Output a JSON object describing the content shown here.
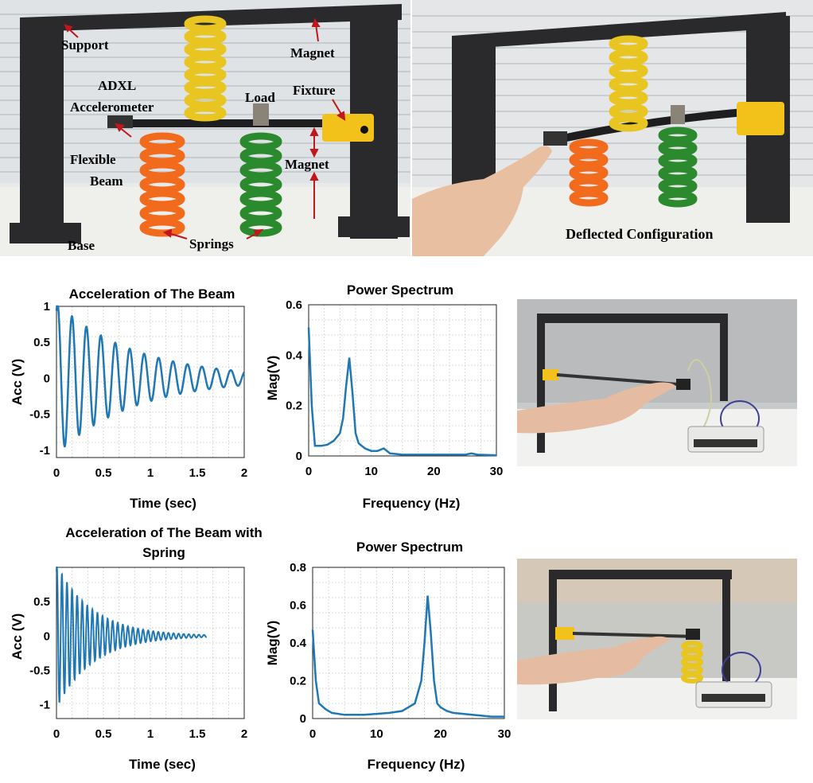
{
  "top_photos": {
    "left_labels": {
      "support": "Support",
      "magnet_top": "Magnet",
      "adxl": "ADXL",
      "accelerometer": "Accelerometer",
      "load": "Load",
      "fixture": "Fixture",
      "flexible": "Flexible",
      "beam": "Beam",
      "magnet_mid": "Magnet",
      "base": "Base",
      "springs": "Springs"
    },
    "right_label": "Deflected Configuration"
  },
  "chart_data": [
    {
      "type": "line",
      "title": "Acceleration of The Beam",
      "xlabel": "Time (sec)",
      "ylabel": "Acc (V)",
      "xlim": [
        0,
        2
      ],
      "ylim": [
        -1.1,
        1.0
      ],
      "xticks": [
        "0",
        "0.5",
        "1",
        "1.5",
        "2"
      ],
      "yticks": [
        "1",
        "0.5",
        "0",
        "-0.5",
        "-1"
      ],
      "grid": true,
      "series": [
        {
          "values_desc": "damped oscillation",
          "amplitude": 1.0,
          "frequency_hz": 6.5,
          "decay": 1.2
        }
      ]
    },
    {
      "type": "line",
      "title": "Power Spectrum",
      "xlabel": "Frequency (Hz)",
      "ylabel": "Mag(V)",
      "xlim": [
        0,
        30
      ],
      "ylim": [
        0,
        0.6
      ],
      "xticks": [
        "0",
        "10",
        "20",
        "30"
      ],
      "yticks": [
        "0.6",
        "0.4",
        "0.2",
        "0"
      ],
      "grid": true,
      "series": [
        {
          "x": [
            0,
            0.5,
            1,
            2,
            3,
            4,
            5,
            5.5,
            6,
            6.5,
            7,
            7.5,
            8,
            9,
            10,
            11,
            12,
            13,
            15,
            20,
            25,
            26,
            27,
            30
          ],
          "y": [
            0.51,
            0.2,
            0.04,
            0.04,
            0.045,
            0.06,
            0.09,
            0.15,
            0.28,
            0.39,
            0.25,
            0.09,
            0.05,
            0.03,
            0.02,
            0.02,
            0.03,
            0.01,
            0.005,
            0.005,
            0.005,
            0.01,
            0.005,
            0.003
          ]
        }
      ]
    },
    {
      "type": "line",
      "title": "Acceleration of The Beam with Spring",
      "xlabel": "Time (sec)",
      "ylabel": "Acc (V)",
      "xlim": [
        0,
        2
      ],
      "ylim": [
        -1.2,
        1.0
      ],
      "xticks": [
        "0",
        "0.5",
        "1",
        "1.5",
        "2"
      ],
      "yticks": [
        "0.5",
        "0",
        "-0.5",
        "-1"
      ],
      "grid": true,
      "series": [
        {
          "values_desc": "damped oscillation",
          "amplitude": 1.0,
          "frequency_hz": 18.5,
          "decay": 2.6,
          "x_end": 1.6
        }
      ]
    },
    {
      "type": "line",
      "title": "Power Spectrum",
      "xlabel": "Frequency (Hz)",
      "ylabel": "Mag(V)",
      "xlim": [
        0,
        30
      ],
      "ylim": [
        0,
        0.8
      ],
      "xticks": [
        "0",
        "10",
        "20",
        "30"
      ],
      "yticks": [
        "0.8",
        "0.6",
        "0.4",
        "0.2",
        "0"
      ],
      "grid": true,
      "series": [
        {
          "x": [
            0,
            0.5,
            1,
            2,
            3,
            5,
            8,
            10,
            12,
            14,
            15,
            16,
            17,
            17.5,
            18,
            18.5,
            19,
            19.5,
            20,
            21,
            22,
            25,
            28,
            30
          ],
          "y": [
            0.47,
            0.2,
            0.08,
            0.05,
            0.03,
            0.02,
            0.02,
            0.025,
            0.03,
            0.04,
            0.06,
            0.08,
            0.2,
            0.4,
            0.65,
            0.45,
            0.2,
            0.08,
            0.06,
            0.04,
            0.03,
            0.02,
            0.01,
            0.01
          ]
        }
      ]
    }
  ]
}
